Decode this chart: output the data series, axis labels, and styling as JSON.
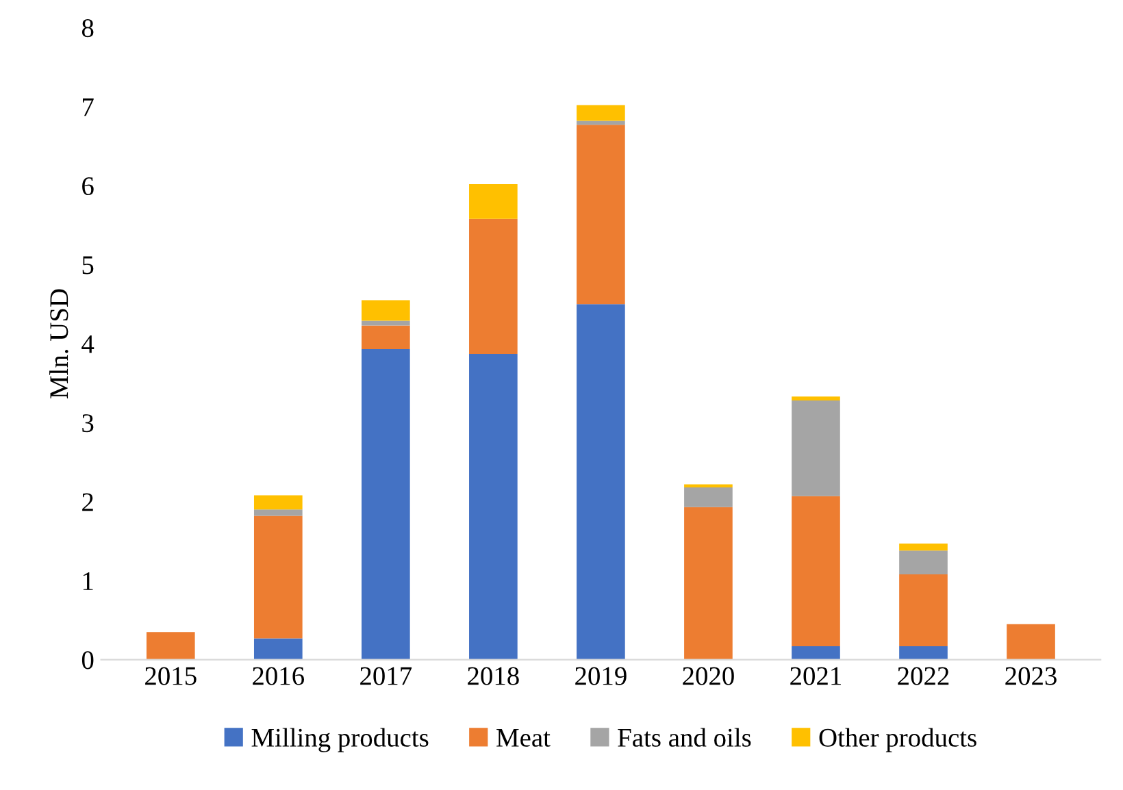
{
  "chart_data": {
    "type": "bar",
    "stacked": true,
    "ylabel": "Mln. USD",
    "categories": [
      "2015",
      "2016",
      "2017",
      "2018",
      "2019",
      "2020",
      "2021",
      "2022",
      "2023"
    ],
    "series": [
      {
        "name": "Milling products",
        "color": "#4472c4",
        "values": [
          0,
          0.27,
          3.93,
          3.87,
          4.5,
          0,
          0.17,
          0.17,
          0
        ]
      },
      {
        "name": "Meat",
        "color": "#ed7d31",
        "values": [
          0.35,
          1.55,
          0.3,
          1.71,
          2.27,
          1.93,
          1.9,
          0.91,
          0.45
        ]
      },
      {
        "name": "Fats and oils",
        "color": "#a5a5a5",
        "values": [
          0,
          0.08,
          0.06,
          0,
          0.05,
          0.25,
          1.21,
          0.3,
          0
        ]
      },
      {
        "name": "Other products",
        "color": "#ffc000",
        "values": [
          0,
          0.18,
          0.26,
          0.44,
          0.2,
          0.04,
          0.05,
          0.09,
          0
        ]
      }
    ],
    "ylim": [
      0,
      8
    ],
    "yticks": [
      0,
      1,
      2,
      3,
      4,
      5,
      6,
      7,
      8
    ],
    "grid": false,
    "legend": "bottom"
  }
}
